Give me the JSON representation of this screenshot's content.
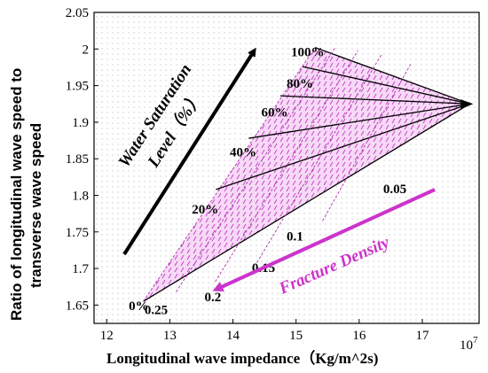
{
  "chart_data": {
    "type": "line",
    "xlabel": "Longitudinal wave impedance（Kg/m^2s)",
    "ylabel_lines": [
      "Ratio of longitudinal wave speed to",
      "transverse wave speed"
    ],
    "x_exponent": "10",
    "x_exponent_power": "7",
    "xlim": [
      11.8,
      17.9
    ],
    "ylim": [
      1.625,
      2.05
    ],
    "xticks": [
      "12",
      "13",
      "14",
      "15",
      "16",
      "17"
    ],
    "yticks": [
      "1.65",
      "1.7",
      "1.75",
      "1.8",
      "1.85",
      "1.9",
      "1.95",
      "2",
      "2.05"
    ],
    "grid": true,
    "pole": {
      "x": 17.75,
      "y": 1.925
    },
    "saturation_lines": [
      {
        "label": "0%",
        "start": [
          12.58,
          1.655
        ],
        "end": [
          17.75,
          1.925
        ]
      },
      {
        "label": "20%",
        "start": [
          13.73,
          1.808
        ],
        "end": [
          17.75,
          1.925
        ]
      },
      {
        "label": "40%",
        "start": [
          14.25,
          1.878
        ],
        "end": [
          17.75,
          1.925
        ]
      },
      {
        "label": "60%",
        "start": [
          14.75,
          1.936
        ],
        "end": [
          17.75,
          1.925
        ]
      },
      {
        "label": "80%",
        "start": [
          15.1,
          1.976
        ],
        "end": [
          17.75,
          1.925
        ]
      },
      {
        "label": "100%",
        "start": [
          15.3,
          2.002
        ],
        "end": [
          17.75,
          1.925
        ]
      }
    ],
    "density_lines": [
      {
        "label": "0.25",
        "points": [
          [
            12.58,
            1.655
          ],
          [
            15.3,
            2.002
          ]
        ]
      },
      {
        "label": "0.2",
        "points": [
          [
            13.1,
            1.668
          ],
          [
            15.62,
            2.002
          ]
        ]
      },
      {
        "label": "0.15",
        "points": [
          [
            13.72,
            1.682
          ],
          [
            15.98,
            1.998
          ]
        ]
      },
      {
        "label": "0.1",
        "points": [
          [
            14.38,
            1.708
          ],
          [
            16.35,
            1.992
          ]
        ]
      },
      {
        "label": "0.05",
        "points": [
          [
            15.42,
            1.765
          ],
          [
            16.82,
            1.98
          ]
        ]
      }
    ],
    "saturation_label_positions": [
      {
        "text": "0%",
        "x": 12.35,
        "y": 1.643
      },
      {
        "text": "20%",
        "x": 13.35,
        "y": 1.775
      },
      {
        "text": "40%",
        "x": 13.95,
        "y": 1.853
      },
      {
        "text": "60%",
        "x": 14.45,
        "y": 1.908
      },
      {
        "text": "80%",
        "x": 14.85,
        "y": 1.947
      },
      {
        "text": "100%",
        "x": 14.92,
        "y": 1.99
      }
    ],
    "density_label_positions": [
      {
        "text": "0.25",
        "x": 12.6,
        "y": 1.638
      },
      {
        "text": "0.2",
        "x": 13.55,
        "y": 1.655
      },
      {
        "text": "0.15",
        "x": 14.3,
        "y": 1.695
      },
      {
        "text": "0.1",
        "x": 14.85,
        "y": 1.738
      },
      {
        "text": "0.05",
        "x": 16.38,
        "y": 1.803
      }
    ],
    "annotations": {
      "saturation": {
        "line1": "Water Saturation",
        "line2": "Level（%）",
        "color": "#000000"
      },
      "fracture": {
        "text": "Fracture Density",
        "color": "#cc33cc"
      }
    },
    "fill_color": "#d966d9"
  }
}
